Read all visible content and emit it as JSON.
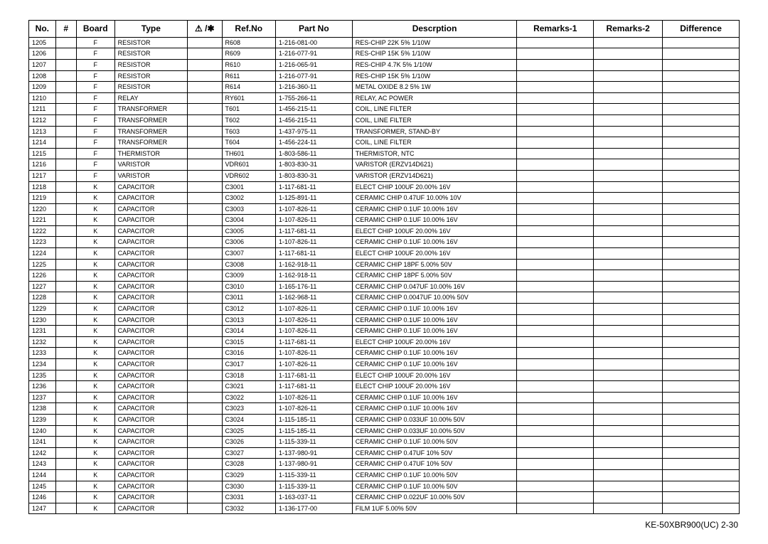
{
  "footer": "KE-50XBR900(UC)    2-30",
  "columns": [
    {
      "key": "no",
      "label": "No.",
      "th_class": "col-no",
      "td_class": "c-no"
    },
    {
      "key": "hash",
      "label": "#",
      "th_class": "col-hash",
      "td_class": "c-hash"
    },
    {
      "key": "board",
      "label": "Board",
      "th_class": "col-board",
      "td_class": "c-board"
    },
    {
      "key": "type",
      "label": "Type",
      "th_class": "col-type",
      "td_class": "c-type"
    },
    {
      "key": "warn",
      "label": "⚠ /✱",
      "th_class": "col-warn",
      "td_class": "c-warn"
    },
    {
      "key": "refno",
      "label": "Ref.No",
      "th_class": "col-refno",
      "td_class": "c-refno"
    },
    {
      "key": "partno",
      "label": "Part No",
      "th_class": "col-partno",
      "td_class": "c-partno"
    },
    {
      "key": "desc",
      "label": "Descrption",
      "th_class": "col-desc",
      "td_class": "c-desc"
    },
    {
      "key": "rem1",
      "label": "Remarks-1",
      "th_class": "col-rem1",
      "td_class": "c-rem1"
    },
    {
      "key": "rem2",
      "label": "Remarks-2",
      "th_class": "col-rem2",
      "td_class": "c-rem2"
    },
    {
      "key": "diff",
      "label": "Difference",
      "th_class": "col-diff",
      "td_class": "c-diff"
    }
  ],
  "rows": [
    {
      "no": "1205",
      "hash": "",
      "board": "F",
      "type": "RESISTOR",
      "warn": "",
      "refno": "R608",
      "partno": "1-216-081-00",
      "desc": "RES-CHIP      22K   5%    1/10W",
      "rem1": "",
      "rem2": "",
      "diff": ""
    },
    {
      "no": "1206",
      "hash": "",
      "board": "F",
      "type": "RESISTOR",
      "warn": "",
      "refno": "R609",
      "partno": "1-216-077-91",
      "desc": "RES-CHIP      15K   5%    1/10W",
      "rem1": "",
      "rem2": "",
      "diff": ""
    },
    {
      "no": "1207",
      "hash": "",
      "board": "F",
      "type": "RESISTOR",
      "warn": "",
      "refno": "R610",
      "partno": "1-216-065-91",
      "desc": "RES-CHIP      4.7K  5%    1/10W",
      "rem1": "",
      "rem2": "",
      "diff": ""
    },
    {
      "no": "1208",
      "hash": "",
      "board": "F",
      "type": "RESISTOR",
      "warn": "",
      "refno": "R611",
      "partno": "1-216-077-91",
      "desc": "RES-CHIP      15K   5%    1/10W",
      "rem1": "",
      "rem2": "",
      "diff": ""
    },
    {
      "no": "1209",
      "hash": "",
      "board": "F",
      "type": "RESISTOR",
      "warn": "",
      "refno": "R614",
      "partno": "1-216-360-11",
      "desc": "METAL OXIDE   8.2   5%     1W",
      "rem1": "",
      "rem2": "",
      "diff": ""
    },
    {
      "no": "1210",
      "hash": "",
      "board": "F",
      "type": "RELAY",
      "warn": "",
      "refno": "RY601",
      "partno": "1-755-266-11",
      "desc": "RELAY, AC POWER",
      "rem1": "",
      "rem2": "",
      "diff": ""
    },
    {
      "no": "1211",
      "hash": "",
      "board": "F",
      "type": "TRANSFORMER",
      "warn": "",
      "refno": "T601",
      "partno": "1-456-215-11",
      "desc": "COIL, LINE FILTER",
      "rem1": "",
      "rem2": "",
      "diff": ""
    },
    {
      "no": "1212",
      "hash": "",
      "board": "F",
      "type": "TRANSFORMER",
      "warn": "",
      "refno": "T602",
      "partno": "1-456-215-11",
      "desc": "COIL, LINE FILTER",
      "rem1": "",
      "rem2": "",
      "diff": ""
    },
    {
      "no": "1213",
      "hash": "",
      "board": "F",
      "type": "TRANSFORMER",
      "warn": "",
      "refno": "T603",
      "partno": "1-437-975-11",
      "desc": "TRANSFORMER, STAND-BY",
      "rem1": "",
      "rem2": "",
      "diff": ""
    },
    {
      "no": "1214",
      "hash": "",
      "board": "F",
      "type": "TRANSFORMER",
      "warn": "",
      "refno": "T604",
      "partno": "1-456-224-11",
      "desc": "COIL, LINE FILTER",
      "rem1": "",
      "rem2": "",
      "diff": ""
    },
    {
      "no": "1215",
      "hash": "",
      "board": "F",
      "type": "THERMISTOR",
      "warn": "",
      "refno": "TH601",
      "partno": "1-803-586-11",
      "desc": "THERMISTOR, NTC",
      "rem1": "",
      "rem2": "",
      "diff": ""
    },
    {
      "no": "1216",
      "hash": "",
      "board": "F",
      "type": "VARISTOR",
      "warn": "",
      "refno": "VDR601",
      "partno": "1-803-830-31",
      "desc": "VARISTOR (ERZV14D621)",
      "rem1": "",
      "rem2": "",
      "diff": ""
    },
    {
      "no": "1217",
      "hash": "",
      "board": "F",
      "type": "VARISTOR",
      "warn": "",
      "refno": "VDR602",
      "partno": "1-803-830-31",
      "desc": "VARISTOR (ERZV14D621)",
      "rem1": "",
      "rem2": "",
      "diff": ""
    },
    {
      "no": "1218",
      "hash": "",
      "board": "K",
      "type": "CAPACITOR",
      "warn": "",
      "refno": "C3001",
      "partno": "1-117-681-11",
      "desc": "ELECT CHIP   100UF          20.00% 16V",
      "rem1": "",
      "rem2": "",
      "diff": ""
    },
    {
      "no": "1219",
      "hash": "",
      "board": "K",
      "type": "CAPACITOR",
      "warn": "",
      "refno": "C3002",
      "partno": "1-125-891-11",
      "desc": "CERAMIC CHIP 0.47UF        10.00% 10V",
      "rem1": "",
      "rem2": "",
      "diff": ""
    },
    {
      "no": "1220",
      "hash": "",
      "board": "K",
      "type": "CAPACITOR",
      "warn": "",
      "refno": "C3003",
      "partno": "1-107-826-11",
      "desc": "CERAMIC CHIP 0.1UF          10.00% 16V",
      "rem1": "",
      "rem2": "",
      "diff": ""
    },
    {
      "no": "1221",
      "hash": "",
      "board": "K",
      "type": "CAPACITOR",
      "warn": "",
      "refno": "C3004",
      "partno": "1-107-826-11",
      "desc": "CERAMIC CHIP 0.1UF          10.00% 16V",
      "rem1": "",
      "rem2": "",
      "diff": ""
    },
    {
      "no": "1222",
      "hash": "",
      "board": "K",
      "type": "CAPACITOR",
      "warn": "",
      "refno": "C3005",
      "partno": "1-117-681-11",
      "desc": "ELECT CHIP   100UF          20.00% 16V",
      "rem1": "",
      "rem2": "",
      "diff": ""
    },
    {
      "no": "1223",
      "hash": "",
      "board": "K",
      "type": "CAPACITOR",
      "warn": "",
      "refno": "C3006",
      "partno": "1-107-826-11",
      "desc": "CERAMIC CHIP 0.1UF          10.00% 16V",
      "rem1": "",
      "rem2": "",
      "diff": ""
    },
    {
      "no": "1224",
      "hash": "",
      "board": "K",
      "type": "CAPACITOR",
      "warn": "",
      "refno": "C3007",
      "partno": "1-117-681-11",
      "desc": "ELECT CHIP   100UF          20.00% 16V",
      "rem1": "",
      "rem2": "",
      "diff": ""
    },
    {
      "no": "1225",
      "hash": "",
      "board": "K",
      "type": "CAPACITOR",
      "warn": "",
      "refno": "C3008",
      "partno": "1-162-918-11",
      "desc": "CERAMIC CHIP 18PF            5.00% 50V",
      "rem1": "",
      "rem2": "",
      "diff": ""
    },
    {
      "no": "1226",
      "hash": "",
      "board": "K",
      "type": "CAPACITOR",
      "warn": "",
      "refno": "C3009",
      "partno": "1-162-918-11",
      "desc": "CERAMIC CHIP 18PF            5.00% 50V",
      "rem1": "",
      "rem2": "",
      "diff": ""
    },
    {
      "no": "1227",
      "hash": "",
      "board": "K",
      "type": "CAPACITOR",
      "warn": "",
      "refno": "C3010",
      "partno": "1-165-176-11",
      "desc": "CERAMIC CHIP 0.047UF     10.00% 16V",
      "rem1": "",
      "rem2": "",
      "diff": ""
    },
    {
      "no": "1228",
      "hash": "",
      "board": "K",
      "type": "CAPACITOR",
      "warn": "",
      "refno": "C3011",
      "partno": "1-162-968-11",
      "desc": "CERAMIC CHIP 0.0047UF   10.00% 50V",
      "rem1": "",
      "rem2": "",
      "diff": ""
    },
    {
      "no": "1229",
      "hash": "",
      "board": "K",
      "type": "CAPACITOR",
      "warn": "",
      "refno": "C3012",
      "partno": "1-107-826-11",
      "desc": "CERAMIC CHIP 0.1UF          10.00% 16V",
      "rem1": "",
      "rem2": "",
      "diff": ""
    },
    {
      "no": "1230",
      "hash": "",
      "board": "K",
      "type": "CAPACITOR",
      "warn": "",
      "refno": "C3013",
      "partno": "1-107-826-11",
      "desc": "CERAMIC CHIP 0.1UF          10.00% 16V",
      "rem1": "",
      "rem2": "",
      "diff": ""
    },
    {
      "no": "1231",
      "hash": "",
      "board": "K",
      "type": "CAPACITOR",
      "warn": "",
      "refno": "C3014",
      "partno": "1-107-826-11",
      "desc": "CERAMIC CHIP 0.1UF          10.00% 16V",
      "rem1": "",
      "rem2": "",
      "diff": ""
    },
    {
      "no": "1232",
      "hash": "",
      "board": "K",
      "type": "CAPACITOR",
      "warn": "",
      "refno": "C3015",
      "partno": "1-117-681-11",
      "desc": "ELECT CHIP   100UF          20.00% 16V",
      "rem1": "",
      "rem2": "",
      "diff": ""
    },
    {
      "no": "1233",
      "hash": "",
      "board": "K",
      "type": "CAPACITOR",
      "warn": "",
      "refno": "C3016",
      "partno": "1-107-826-11",
      "desc": "CERAMIC CHIP 0.1UF          10.00% 16V",
      "rem1": "",
      "rem2": "",
      "diff": ""
    },
    {
      "no": "1234",
      "hash": "",
      "board": "K",
      "type": "CAPACITOR",
      "warn": "",
      "refno": "C3017",
      "partno": "1-107-826-11",
      "desc": "CERAMIC CHIP 0.1UF          10.00% 16V",
      "rem1": "",
      "rem2": "",
      "diff": ""
    },
    {
      "no": "1235",
      "hash": "",
      "board": "K",
      "type": "CAPACITOR",
      "warn": "",
      "refno": "C3018",
      "partno": "1-117-681-11",
      "desc": "ELECT CHIP   100UF          20.00% 16V",
      "rem1": "",
      "rem2": "",
      "diff": ""
    },
    {
      "no": "1236",
      "hash": "",
      "board": "K",
      "type": "CAPACITOR",
      "warn": "",
      "refno": "C3021",
      "partno": "1-117-681-11",
      "desc": "ELECT CHIP   100UF          20.00% 16V",
      "rem1": "",
      "rem2": "",
      "diff": ""
    },
    {
      "no": "1237",
      "hash": "",
      "board": "K",
      "type": "CAPACITOR",
      "warn": "",
      "refno": "C3022",
      "partno": "1-107-826-11",
      "desc": "CERAMIC CHIP 0.1UF          10.00% 16V",
      "rem1": "",
      "rem2": "",
      "diff": ""
    },
    {
      "no": "1238",
      "hash": "",
      "board": "K",
      "type": "CAPACITOR",
      "warn": "",
      "refno": "C3023",
      "partno": "1-107-826-11",
      "desc": "CERAMIC CHIP 0.1UF          10.00% 16V",
      "rem1": "",
      "rem2": "",
      "diff": ""
    },
    {
      "no": "1239",
      "hash": "",
      "board": "K",
      "type": "CAPACITOR",
      "warn": "",
      "refno": "C3024",
      "partno": "1-115-185-11",
      "desc": "CERAMIC CHIP 0.033UF     10.00% 50V",
      "rem1": "",
      "rem2": "",
      "diff": ""
    },
    {
      "no": "1240",
      "hash": "",
      "board": "K",
      "type": "CAPACITOR",
      "warn": "",
      "refno": "C3025",
      "partno": "1-115-185-11",
      "desc": "CERAMIC CHIP 0.033UF     10.00% 50V",
      "rem1": "",
      "rem2": "",
      "diff": ""
    },
    {
      "no": "1241",
      "hash": "",
      "board": "K",
      "type": "CAPACITOR",
      "warn": "",
      "refno": "C3026",
      "partno": "1-115-339-11",
      "desc": "CERAMIC CHIP 0.1UF          10.00% 50V",
      "rem1": "",
      "rem2": "",
      "diff": ""
    },
    {
      "no": "1242",
      "hash": "",
      "board": "K",
      "type": "CAPACITOR",
      "warn": "",
      "refno": "C3027",
      "partno": "1-137-980-91",
      "desc": "CERAMIC CHIP 0.47UF        10%    50V",
      "rem1": "",
      "rem2": "",
      "diff": ""
    },
    {
      "no": "1243",
      "hash": "",
      "board": "K",
      "type": "CAPACITOR",
      "warn": "",
      "refno": "C3028",
      "partno": "1-137-980-91",
      "desc": "CERAMIC CHIP 0.47UF        10%    50V",
      "rem1": "",
      "rem2": "",
      "diff": ""
    },
    {
      "no": "1244",
      "hash": "",
      "board": "K",
      "type": "CAPACITOR",
      "warn": "",
      "refno": "C3029",
      "partno": "1-115-339-11",
      "desc": "CERAMIC CHIP 0.1UF          10.00% 50V",
      "rem1": "",
      "rem2": "",
      "diff": ""
    },
    {
      "no": "1245",
      "hash": "",
      "board": "K",
      "type": "CAPACITOR",
      "warn": "",
      "refno": "C3030",
      "partno": "1-115-339-11",
      "desc": "CERAMIC CHIP 0.1UF          10.00% 50V",
      "rem1": "",
      "rem2": "",
      "diff": ""
    },
    {
      "no": "1246",
      "hash": "",
      "board": "K",
      "type": "CAPACITOR",
      "warn": "",
      "refno": "C3031",
      "partno": "1-163-037-11",
      "desc": "CERAMIC CHIP 0.022UF     10.00% 50V",
      "rem1": "",
      "rem2": "",
      "diff": ""
    },
    {
      "no": "1247",
      "hash": "",
      "board": "K",
      "type": "CAPACITOR",
      "warn": "",
      "refno": "C3032",
      "partno": "1-136-177-00",
      "desc": "FILM          1UF           5.00% 50V",
      "rem1": "",
      "rem2": "",
      "diff": ""
    }
  ]
}
